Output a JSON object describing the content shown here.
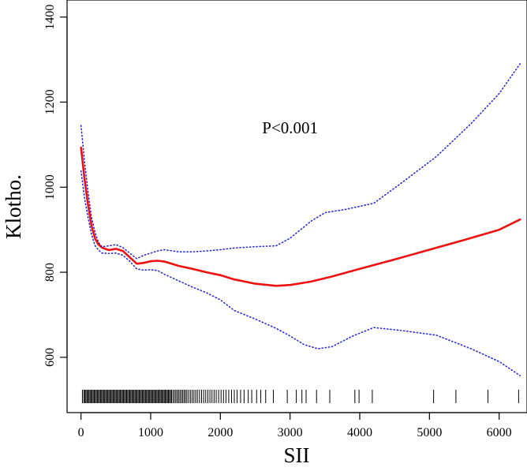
{
  "chart_data": {
    "type": "line",
    "title": "",
    "xlabel": "SII",
    "ylabel": "Klotho.",
    "xlim": [
      -200,
      6400
    ],
    "ylim": [
      470,
      1440
    ],
    "x_ticks": [
      "0",
      "1000",
      "2000",
      "3000",
      "4000",
      "5000",
      "6000"
    ],
    "y_ticks": [
      "600",
      "800",
      "1000",
      "1200",
      "1400"
    ],
    "x_tick_values": [
      0,
      1000,
      2000,
      3000,
      4000,
      5000,
      6000
    ],
    "y_tick_values": [
      600,
      800,
      1000,
      1200,
      1400
    ],
    "annotation": "P<0.001",
    "annotation_pos": {
      "x": 3000,
      "y": 1140
    },
    "series": [
      {
        "role": "estimate",
        "color": "#ee1111",
        "style": "solid",
        "points": [
          [
            0,
            1093
          ],
          [
            50,
            1020
          ],
          [
            100,
            960
          ],
          [
            150,
            910
          ],
          [
            200,
            880
          ],
          [
            250,
            865
          ],
          [
            300,
            858
          ],
          [
            400,
            852
          ],
          [
            500,
            855
          ],
          [
            600,
            850
          ],
          [
            700,
            835
          ],
          [
            800,
            820
          ],
          [
            900,
            822
          ],
          [
            1000,
            826
          ],
          [
            1100,
            827
          ],
          [
            1200,
            825
          ],
          [
            1300,
            820
          ],
          [
            1400,
            815
          ],
          [
            1600,
            808
          ],
          [
            1800,
            800
          ],
          [
            2000,
            793
          ],
          [
            2200,
            783
          ],
          [
            2500,
            773
          ],
          [
            2800,
            768
          ],
          [
            3000,
            770
          ],
          [
            3300,
            778
          ],
          [
            3600,
            790
          ],
          [
            4000,
            808
          ],
          [
            4500,
            830
          ],
          [
            5000,
            853
          ],
          [
            5500,
            876
          ],
          [
            6000,
            900
          ],
          [
            6300,
            924
          ]
        ]
      },
      {
        "role": "upper-ci",
        "color": "#2b2bd9",
        "style": "dotted",
        "points": [
          [
            0,
            1145
          ],
          [
            50,
            1060
          ],
          [
            100,
            990
          ],
          [
            150,
            930
          ],
          [
            200,
            895
          ],
          [
            250,
            870
          ],
          [
            300,
            860
          ],
          [
            400,
            862
          ],
          [
            500,
            865
          ],
          [
            600,
            858
          ],
          [
            700,
            845
          ],
          [
            800,
            832
          ],
          [
            900,
            840
          ],
          [
            1000,
            845
          ],
          [
            1100,
            850
          ],
          [
            1200,
            853
          ],
          [
            1400,
            848
          ],
          [
            1600,
            848
          ],
          [
            1800,
            850
          ],
          [
            2000,
            853
          ],
          [
            2200,
            857
          ],
          [
            2500,
            860
          ],
          [
            2800,
            862
          ],
          [
            3000,
            880
          ],
          [
            3300,
            920
          ],
          [
            3500,
            940
          ],
          [
            3800,
            948
          ],
          [
            4200,
            962
          ],
          [
            4600,
            1010
          ],
          [
            5100,
            1072
          ],
          [
            5600,
            1150
          ],
          [
            6000,
            1220
          ],
          [
            6300,
            1290
          ]
        ]
      },
      {
        "role": "lower-ci",
        "color": "#2b2bd9",
        "style": "dotted",
        "points": [
          [
            0,
            1038
          ],
          [
            50,
            975
          ],
          [
            100,
            930
          ],
          [
            150,
            890
          ],
          [
            200,
            863
          ],
          [
            250,
            852
          ],
          [
            300,
            845
          ],
          [
            400,
            844
          ],
          [
            500,
            845
          ],
          [
            600,
            840
          ],
          [
            700,
            826
          ],
          [
            800,
            808
          ],
          [
            900,
            805
          ],
          [
            1000,
            806
          ],
          [
            1100,
            804
          ],
          [
            1200,
            795
          ],
          [
            1400,
            780
          ],
          [
            1600,
            765
          ],
          [
            1800,
            752
          ],
          [
            2000,
            735
          ],
          [
            2200,
            710
          ],
          [
            2500,
            690
          ],
          [
            2800,
            668
          ],
          [
            3000,
            650
          ],
          [
            3200,
            630
          ],
          [
            3400,
            620
          ],
          [
            3600,
            625
          ],
          [
            3900,
            650
          ],
          [
            4200,
            670
          ],
          [
            4600,
            663
          ],
          [
            5100,
            652
          ],
          [
            5600,
            620
          ],
          [
            6000,
            590
          ],
          [
            6300,
            557
          ]
        ]
      }
    ],
    "rug_x": [
      20,
      40,
      55,
      70,
      85,
      100,
      115,
      130,
      145,
      160,
      175,
      190,
      205,
      220,
      235,
      250,
      265,
      280,
      295,
      310,
      325,
      340,
      355,
      370,
      385,
      400,
      415,
      430,
      445,
      460,
      475,
      490,
      505,
      520,
      535,
      550,
      565,
      580,
      595,
      610,
      625,
      640,
      655,
      670,
      685,
      700,
      715,
      730,
      745,
      760,
      775,
      790,
      805,
      820,
      835,
      850,
      865,
      880,
      895,
      910,
      925,
      940,
      955,
      970,
      985,
      1000,
      1015,
      1030,
      1045,
      1060,
      1075,
      1090,
      1105,
      1120,
      1135,
      1150,
      1165,
      1180,
      1195,
      1210,
      1225,
      1240,
      1255,
      1270,
      1285,
      1300,
      1320,
      1340,
      1360,
      1380,
      1400,
      1420,
      1440,
      1460,
      1480,
      1500,
      1520,
      1545,
      1570,
      1595,
      1620,
      1645,
      1670,
      1700,
      1730,
      1760,
      1790,
      1820,
      1850,
      1880,
      1910,
      1940,
      1975,
      2010,
      2045,
      2080,
      2120,
      2160,
      2200,
      2240,
      2290,
      2340,
      2400,
      2450,
      2520,
      2580,
      2650,
      2760,
      2960,
      3090,
      3170,
      3230,
      3380,
      3570,
      3930,
      3990,
      4180,
      5060,
      5380,
      5840,
      6280
    ]
  }
}
